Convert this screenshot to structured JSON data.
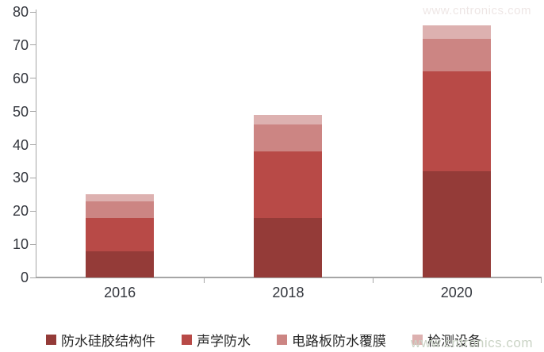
{
  "chart_data": {
    "type": "bar",
    "stacked": true,
    "title": "",
    "xlabel": "",
    "ylabel": "",
    "categories": [
      "2016",
      "2018",
      "2020"
    ],
    "series": [
      {
        "name": "防水硅胶结构件",
        "color": "#943b38",
        "values": [
          8,
          18,
          32
        ]
      },
      {
        "name": "声学防水",
        "color": "#b84a47",
        "values": [
          10,
          20,
          30
        ]
      },
      {
        "name": "电路板防水覆膜",
        "color": "#cc8583",
        "values": [
          5,
          8,
          10
        ]
      },
      {
        "name": "检测设备",
        "color": "#ddb1b0",
        "values": [
          2,
          3,
          4
        ]
      }
    ],
    "totals": [
      25,
      49,
      76
    ],
    "ylim": [
      0,
      80
    ],
    "yticks": [
      0,
      10,
      20,
      30,
      40,
      50,
      60,
      70,
      80
    ],
    "grid": false,
    "legend_position": "bottom",
    "axis_color": "#a6a6a6",
    "tick_label_color": "#33363d"
  },
  "watermark": {
    "bottom_text": "www.cntronics.com",
    "top_ghost_text": "www.cntronics.com"
  }
}
